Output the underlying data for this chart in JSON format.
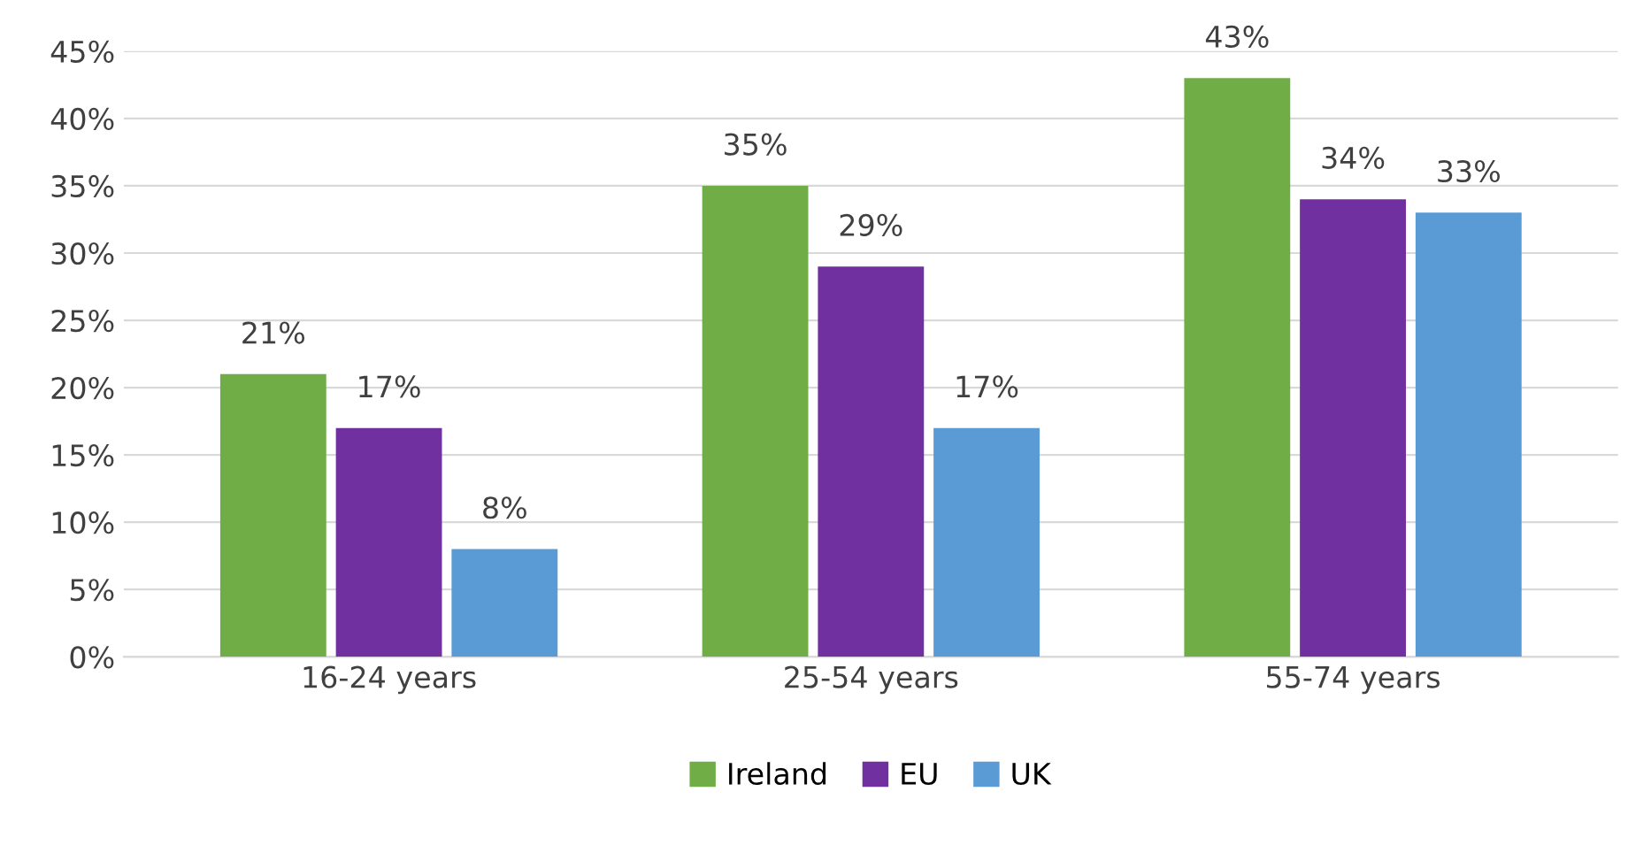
{
  "chart_data": {
    "type": "bar",
    "categories": [
      "16-24 years",
      "25-54 years",
      "55-74 years"
    ],
    "series": [
      {
        "name": "Ireland",
        "color": "#70ad47",
        "values": [
          21,
          35,
          43
        ],
        "value_labels": [
          "21%",
          "35%",
          "43%"
        ]
      },
      {
        "name": "EU",
        "color": "#7030a0",
        "values": [
          17,
          29,
          34
        ],
        "value_labels": [
          "17%",
          "29%",
          "34%"
        ]
      },
      {
        "name": "UK",
        "color": "#5b9bd5",
        "values": [
          8,
          17,
          33
        ],
        "value_labels": [
          "8%",
          "17%",
          "33%"
        ]
      }
    ],
    "ylim": [
      0,
      45
    ],
    "yticks": [
      {
        "value": 0,
        "label": "0%"
      },
      {
        "value": 5,
        "label": "5%"
      },
      {
        "value": 10,
        "label": "10%"
      },
      {
        "value": 15,
        "label": "15%"
      },
      {
        "value": 20,
        "label": "20%"
      },
      {
        "value": 25,
        "label": "25%"
      },
      {
        "value": 30,
        "label": "30%"
      },
      {
        "value": 35,
        "label": "35%"
      },
      {
        "value": 40,
        "label": "40%"
      },
      {
        "value": 45,
        "label": "45%"
      }
    ],
    "grid": "y",
    "legend": "bottom"
  }
}
